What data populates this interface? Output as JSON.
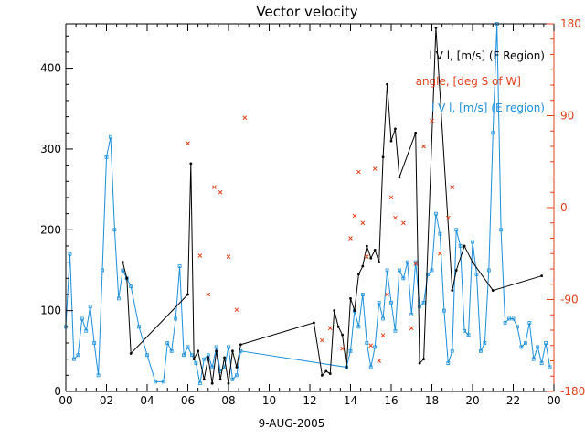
{
  "chart_data": {
    "type": "line",
    "title": "Vector velocity",
    "xlabel": "9-AUG-2005",
    "x_tick_labels": [
      "00",
      "02",
      "04",
      "06",
      "08",
      "10",
      "12",
      "14",
      "16",
      "18",
      "20",
      "22",
      "00"
    ],
    "xlim": [
      0,
      24
    ],
    "y_left_ticks": [
      "0",
      "100",
      "200",
      "300",
      "400"
    ],
    "ylim_left": [
      0,
      455
    ],
    "y_right_ticks": [
      "180",
      "90",
      "0",
      "-90",
      "-180"
    ],
    "ylim_right": [
      -180,
      180
    ],
    "colors": {
      "f_region": "#000000",
      "angle": "#e0401a",
      "e_region": "#1a8fdc",
      "axis": "#000000"
    },
    "legend": [
      {
        "label": "l V l, [m/s] (F Region)",
        "color": "#000000"
      },
      {
        "label": "angle, [deg S of W]",
        "color": "#e0401a"
      },
      {
        "label": "l V l, [m/s] (E region)",
        "color": "#1a8fdc"
      }
    ],
    "series": [
      {
        "name": "l V l, [m/s] (F Region)",
        "axis": "left",
        "x": [
          2.8,
          3.0,
          3.2,
          6.0,
          6.15,
          6.3,
          6.5,
          6.8,
          7.0,
          7.2,
          7.4,
          7.6,
          7.8,
          8.0,
          8.2,
          8.4,
          8.6,
          12.2,
          12.6,
          12.8,
          13.0,
          13.2,
          13.4,
          13.6,
          13.8,
          14.0,
          14.2,
          14.4,
          14.6,
          14.8,
          15.0,
          15.2,
          15.4,
          15.6,
          15.8,
          16.0,
          16.2,
          16.4,
          17.2,
          17.4,
          17.6,
          18.2,
          19.0,
          19.2,
          19.6,
          20.0,
          21.0,
          23.4
        ],
        "values": [
          160,
          140,
          47,
          120,
          282,
          40,
          50,
          15,
          42,
          10,
          50,
          15,
          42,
          10,
          50,
          30,
          58,
          85,
          20,
          25,
          22,
          100,
          80,
          70,
          30,
          115,
          100,
          145,
          155,
          180,
          165,
          175,
          160,
          290,
          380,
          310,
          325,
          265,
          320,
          35,
          40,
          450,
          125,
          150,
          180,
          160,
          125,
          143
        ]
      },
      {
        "name": "angle, [deg S of W]",
        "axis": "right",
        "x": [
          6.0,
          6.6,
          7.0,
          7.3,
          7.6,
          8.0,
          8.4,
          8.8,
          12.6,
          13.0,
          13.6,
          14.0,
          14.2,
          14.4,
          14.6,
          14.8,
          15.0,
          15.2,
          15.4,
          15.6,
          15.8,
          16.0,
          16.2,
          16.6,
          17.0,
          17.2,
          17.6,
          18.0,
          18.4,
          18.8,
          19.0
        ],
        "values": [
          63,
          -47,
          -85,
          20,
          15,
          -48,
          -100,
          88,
          -130,
          -118,
          -138,
          -30,
          -8,
          35,
          -15,
          -48,
          -135,
          38,
          -150,
          -125,
          -85,
          10,
          -10,
          -15,
          -118,
          -55,
          60,
          85,
          -45,
          -10,
          20
        ]
      },
      {
        "name": "l V l, [m/s] (E region)",
        "axis": "left",
        "x": [
          0.0,
          0.2,
          0.4,
          0.6,
          0.8,
          1.0,
          1.2,
          1.4,
          1.6,
          1.8,
          2.0,
          2.2,
          2.4,
          2.6,
          2.8,
          3.0,
          3.2,
          3.6,
          4.0,
          4.4,
          4.8,
          5.0,
          5.2,
          5.4,
          5.6,
          5.8,
          6.0,
          6.2,
          6.4,
          6.6,
          6.8,
          7.0,
          7.2,
          7.4,
          7.6,
          7.8,
          8.0,
          8.2,
          8.4,
          8.6,
          13.8,
          14.0,
          14.2,
          14.4,
          14.6,
          14.8,
          15.0,
          15.2,
          15.4,
          15.6,
          15.8,
          16.0,
          16.2,
          16.4,
          16.6,
          16.8,
          17.0,
          17.2,
          17.4,
          17.6,
          17.8,
          18.0,
          18.2,
          18.4,
          18.6,
          18.8,
          19.0,
          19.2,
          19.4,
          19.6,
          19.8,
          20.0,
          20.2,
          20.4,
          20.6,
          20.8,
          21.0,
          21.2,
          21.4,
          21.6,
          21.8,
          22.0,
          22.2,
          22.4,
          22.6,
          22.8,
          23.0,
          23.2,
          23.4,
          23.6,
          23.8
        ],
        "values": [
          80,
          170,
          40,
          45,
          90,
          75,
          105,
          60,
          20,
          150,
          290,
          315,
          200,
          115,
          150,
          140,
          130,
          80,
          45,
          12,
          12,
          60,
          50,
          90,
          155,
          45,
          55,
          45,
          35,
          10,
          40,
          45,
          30,
          55,
          25,
          30,
          55,
          15,
          20,
          50,
          30,
          50,
          100,
          80,
          120,
          60,
          30,
          55,
          110,
          90,
          150,
          110,
          75,
          150,
          140,
          160,
          95,
          160,
          105,
          110,
          145,
          150,
          220,
          195,
          100,
          35,
          50,
          200,
          180,
          75,
          70,
          185,
          145,
          50,
          60,
          150,
          320,
          455,
          200,
          85,
          90,
          90,
          80,
          55,
          60,
          85,
          40,
          55,
          35,
          60,
          30
        ]
      }
    ]
  }
}
